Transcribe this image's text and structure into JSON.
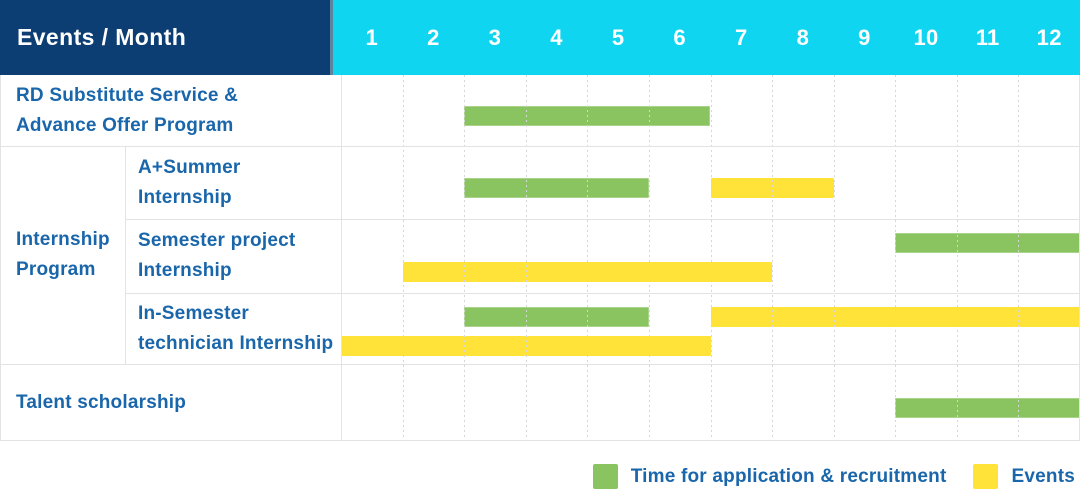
{
  "header": {
    "title": "Events / Month",
    "months": [
      "1",
      "2",
      "3",
      "4",
      "5",
      "6",
      "7",
      "8",
      "9",
      "10",
      "11",
      "12"
    ]
  },
  "legend": {
    "application_label": "Time for application & recruitment",
    "events_label": "Events"
  },
  "colors": {
    "navy_header": "#0d3e73",
    "cyan_header": "#10d5f0",
    "application_green": "#8ac461",
    "event_yellow": "#ffe338",
    "label_blue": "#1a66ab"
  },
  "chart_data": {
    "type": "gantt",
    "x_unit": "month",
    "x_ticks": [
      1,
      2,
      3,
      4,
      5,
      6,
      7,
      8,
      9,
      10,
      11,
      12
    ],
    "legend_entries": [
      {
        "kind": "application",
        "label": "Time for application & recruitment",
        "color": "#8ac461"
      },
      {
        "kind": "event",
        "label": "Events",
        "color": "#ffe338"
      }
    ],
    "group_label_lines": [
      "Internship",
      "Program"
    ],
    "rows": [
      {
        "group": null,
        "label_lines": [
          "RD Substitute Service &",
          "Advance Offer Program"
        ],
        "bars": [
          {
            "kind": "application",
            "start_month": 3,
            "end_month": 6,
            "lane": "mid"
          }
        ]
      },
      {
        "group": "Internship Program",
        "label_lines": [
          "A+Summer",
          "Internship"
        ],
        "bars": [
          {
            "kind": "application",
            "start_month": 3,
            "end_month": 5,
            "lane": "mid"
          },
          {
            "kind": "event",
            "start_month": 7,
            "end_month": 8,
            "lane": "mid"
          }
        ]
      },
      {
        "group": "Internship Program",
        "label_lines": [
          "Semester project",
          "Internship"
        ],
        "bars": [
          {
            "kind": "application",
            "start_month": 10,
            "end_month": 12,
            "lane": "top"
          },
          {
            "kind": "event",
            "start_month": 2,
            "end_month": 7,
            "lane": "bottom"
          }
        ]
      },
      {
        "group": "Internship Program",
        "label_lines": [
          "In-Semester",
          "technician Internship"
        ],
        "bars": [
          {
            "kind": "application",
            "start_month": 3,
            "end_month": 5,
            "lane": "top"
          },
          {
            "kind": "event",
            "start_month": 7,
            "end_month": 12,
            "lane": "top"
          },
          {
            "kind": "event",
            "start_month": 1,
            "end_month": 6,
            "lane": "bottom"
          }
        ]
      },
      {
        "group": null,
        "label_lines": [
          "Talent scholarship"
        ],
        "bars": [
          {
            "kind": "application",
            "start_month": 10,
            "end_month": 12,
            "lane": "mid"
          }
        ]
      }
    ]
  }
}
